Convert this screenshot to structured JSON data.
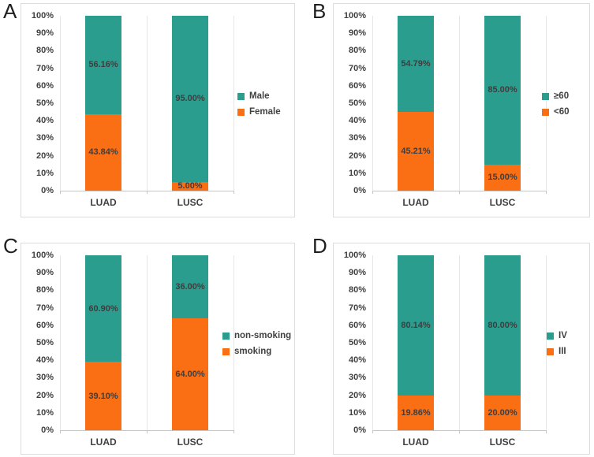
{
  "colors": {
    "teal": "#2b9d8f",
    "orange": "#fa6e14",
    "data_label": "#3e3e3e",
    "axis_text": "#404040",
    "axis_line": "#c6c6c6",
    "gridline": "#e6e6e6",
    "panel_border": "#dcdcdc"
  },
  "y_axis": {
    "ticks": [
      "100%",
      "90%",
      "80%",
      "70%",
      "60%",
      "50%",
      "40%",
      "30%",
      "20%",
      "10%",
      "0%"
    ]
  },
  "chart_data": [
    {
      "type": "bar",
      "stacked": true,
      "panel_label": "A",
      "categories": [
        "LUAD",
        "LUSC"
      ],
      "ylim": [
        0,
        100
      ],
      "grid": false,
      "legend_position": "right",
      "series": [
        {
          "name": "Male",
          "color": "teal",
          "values": [
            56.16,
            95.0
          ]
        },
        {
          "name": "Female",
          "color": "orange",
          "values": [
            43.84,
            5.0
          ]
        }
      ],
      "data_labels": [
        [
          "56.16%",
          "95.00%"
        ],
        [
          "43.84%",
          "5.00%"
        ]
      ]
    },
    {
      "type": "bar",
      "stacked": true,
      "panel_label": "B",
      "categories": [
        "LUAD",
        "LUSC"
      ],
      "ylim": [
        0,
        100
      ],
      "grid": false,
      "legend_position": "right",
      "series": [
        {
          "name": "≥60",
          "color": "teal",
          "values": [
            54.79,
            85.0
          ]
        },
        {
          "name": "<60",
          "color": "orange",
          "values": [
            45.21,
            15.0
          ]
        }
      ],
      "data_labels": [
        [
          "54.79%",
          "85.00%"
        ],
        [
          "45.21%",
          "15.00%"
        ]
      ]
    },
    {
      "type": "bar",
      "stacked": true,
      "panel_label": "C",
      "categories": [
        "LUAD",
        "LUSC"
      ],
      "ylim": [
        0,
        100
      ],
      "grid": false,
      "legend_position": "right",
      "series": [
        {
          "name": "non-smoking",
          "color": "teal",
          "values": [
            60.9,
            36.0
          ]
        },
        {
          "name": "smoking",
          "color": "orange",
          "values": [
            39.1,
            64.0
          ]
        }
      ],
      "data_labels": [
        [
          "60.90%",
          "36.00%"
        ],
        [
          "39.10%",
          "64.00%"
        ]
      ]
    },
    {
      "type": "bar",
      "stacked": true,
      "panel_label": "D",
      "categories": [
        "LUAD",
        "LUSC"
      ],
      "ylim": [
        0,
        100
      ],
      "grid": false,
      "legend_position": "right",
      "series": [
        {
          "name": "IV",
          "color": "teal",
          "values": [
            80.14,
            80.0
          ]
        },
        {
          "name": "III",
          "color": "orange",
          "values": [
            19.86,
            20.0
          ]
        }
      ],
      "data_labels": [
        [
          "80.14%",
          "80.00%"
        ],
        [
          "19.86%",
          "20.00%"
        ]
      ]
    }
  ]
}
